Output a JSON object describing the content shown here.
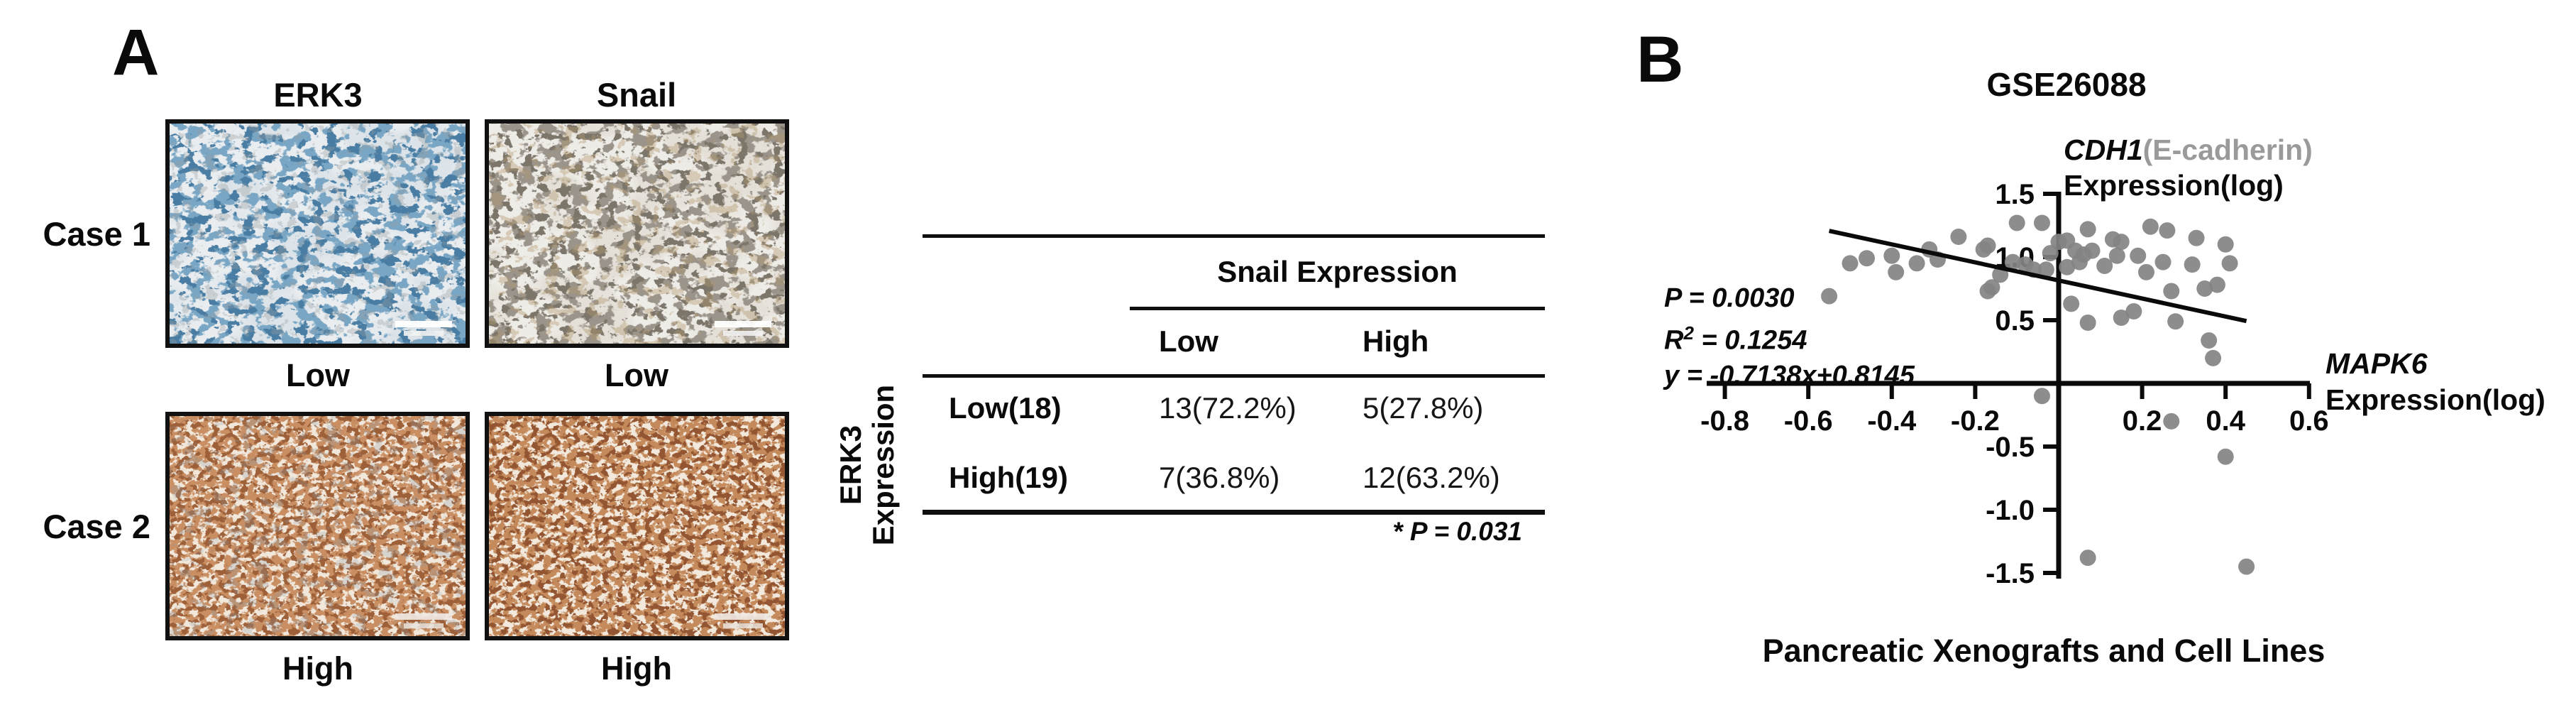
{
  "panel_a": {
    "label": "A",
    "column_titles": [
      "ERK3",
      "Snail"
    ],
    "case_rows": [
      {
        "case_label": "Case 1",
        "erk3_level": "Low",
        "snail_level": "Low"
      },
      {
        "case_label": "Case 2",
        "erk3_level": "High",
        "snail_level": "High"
      }
    ]
  },
  "table": {
    "row_group_label_line1": "ERK3",
    "row_group_label_line2": "Expression",
    "column_group_header": "Snail Expression",
    "column_headers": [
      "Low",
      "High"
    ],
    "rows": [
      {
        "label": "Low(18)",
        "low": "13(72.2%)",
        "high": "5(27.8%)"
      },
      {
        "label": "High(19)",
        "low": "7(36.8%)",
        "high": "12(63.2%)"
      }
    ],
    "footnote": "* P = 0.031"
  },
  "panel_b": {
    "label": "B",
    "title": "GSE26088",
    "y_axis_gene": "CDH1",
    "y_axis_paren": "(E-cadherin)",
    "y_axis_line2": "Expression(log)",
    "x_axis_gene": "MAPK6",
    "x_axis_line2": "Expression(log)",
    "stats_p": "P = 0.0030",
    "stats_r_base": "R",
    "stats_r_sup": "2",
    "stats_r_tail": " = 0.1254",
    "stats_equation": "y = -0.7138x+0.8145",
    "caption": "Pancreatic Xenografts and Cell Lines",
    "colors": {
      "point_gray": "#838383",
      "label_gray": "#9a9a9a",
      "axis_black": "#0a0a0a"
    }
  },
  "chart_data": {
    "type": "scatter",
    "title": "GSE26088",
    "xlabel": "MAPK6 Expression(log)",
    "ylabel": "CDH1 (E-cadherin) Expression(log)",
    "xlim": [
      -0.93,
      0.63
    ],
    "ylim": [
      -1.6,
      1.55
    ],
    "x_ticks": [
      -0.8,
      -0.6,
      -0.4,
      -0.2,
      0.2,
      0.4,
      0.6
    ],
    "y_ticks": [
      1.5,
      1.0,
      0.5,
      -0.5,
      -1.0,
      -1.5
    ],
    "grid": false,
    "legend": false,
    "regression": {
      "slope": -0.7138,
      "intercept": 0.8145,
      "equation": "y = -0.7138x+0.8145",
      "r_squared": 0.1254,
      "p_value": 0.003,
      "line_x_range": [
        -0.55,
        0.45
      ]
    },
    "points": [
      [
        -0.55,
        0.69
      ],
      [
        -0.5,
        0.95
      ],
      [
        -0.46,
        0.99
      ],
      [
        -0.4,
        1.01
      ],
      [
        -0.39,
        0.88
      ],
      [
        -0.34,
        0.95
      ],
      [
        -0.31,
        1.06
      ],
      [
        -0.29,
        0.98
      ],
      [
        -0.24,
        1.16
      ],
      [
        -0.18,
        1.06
      ],
      [
        -0.17,
        1.09
      ],
      [
        -0.17,
        0.73
      ],
      [
        -0.16,
        0.76
      ],
      [
        -0.14,
        0.86
      ],
      [
        -0.11,
        0.96
      ],
      [
        -0.1,
        1.27
      ],
      [
        -0.08,
        0.94
      ],
      [
        -0.06,
        0.9
      ],
      [
        -0.04,
        1.27
      ],
      [
        -0.04,
        -0.1
      ],
      [
        -0.03,
        0.9
      ],
      [
        -0.02,
        1.03
      ],
      [
        0.0,
        1.12
      ],
      [
        0.02,
        1.13
      ],
      [
        0.02,
        0.92
      ],
      [
        0.03,
        0.63
      ],
      [
        0.04,
        1.05
      ],
      [
        0.05,
        0.96
      ],
      [
        0.06,
        1.02
      ],
      [
        0.07,
        1.22
      ],
      [
        0.07,
        0.48
      ],
      [
        0.07,
        -1.38
      ],
      [
        0.08,
        1.05
      ],
      [
        0.11,
        0.93
      ],
      [
        0.13,
        1.14
      ],
      [
        0.14,
        1.01
      ],
      [
        0.15,
        1.12
      ],
      [
        0.15,
        0.52
      ],
      [
        0.18,
        0.57
      ],
      [
        0.19,
        1.01
      ],
      [
        0.21,
        0.88
      ],
      [
        0.22,
        1.24
      ],
      [
        0.25,
        0.96
      ],
      [
        0.26,
        1.21
      ],
      [
        0.27,
        0.73
      ],
      [
        0.27,
        -0.3
      ],
      [
        0.28,
        0.49
      ],
      [
        0.32,
        0.94
      ],
      [
        0.33,
        1.15
      ],
      [
        0.35,
        0.75
      ],
      [
        0.36,
        0.34
      ],
      [
        0.37,
        0.2
      ],
      [
        0.38,
        0.78
      ],
      [
        0.4,
        1.1
      ],
      [
        0.4,
        -0.58
      ],
      [
        0.41,
        0.95
      ],
      [
        0.45,
        -1.45
      ]
    ]
  }
}
